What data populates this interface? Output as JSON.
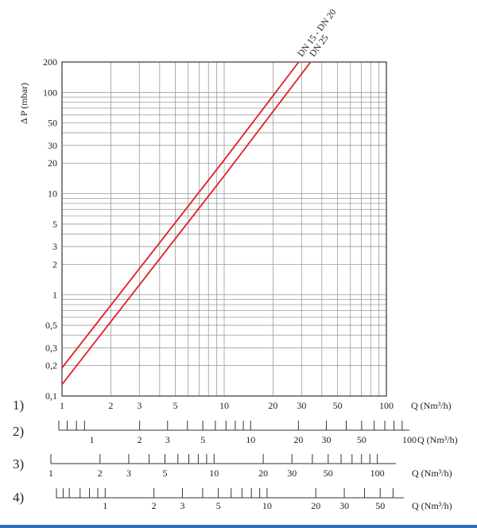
{
  "colors": {
    "series": "#e11d25",
    "grid": "#9a9a9a",
    "axis": "#333333",
    "text": "#222222",
    "bar": "#2f6fb0"
  },
  "chart_data": {
    "type": "line",
    "ylabel": "Δ P (mbar)",
    "xlabel": "Q (Nm³/h)",
    "xscale": "log",
    "yscale": "log",
    "xlim": [
      1,
      100
    ],
    "ylim": [
      0.1,
      200
    ],
    "grid": true,
    "y_ticks": [
      {
        "value": 0.1,
        "label": "0,1"
      },
      {
        "value": 0.2,
        "label": "0,2"
      },
      {
        "value": 0.3,
        "label": "0,3"
      },
      {
        "value": 0.5,
        "label": "0,5"
      },
      {
        "value": 1,
        "label": "1"
      },
      {
        "value": 2,
        "label": "2"
      },
      {
        "value": 3,
        "label": "3"
      },
      {
        "value": 5,
        "label": "5"
      },
      {
        "value": 10,
        "label": "10"
      },
      {
        "value": 20,
        "label": "20"
      },
      {
        "value": 30,
        "label": "30"
      },
      {
        "value": 50,
        "label": "50"
      },
      {
        "value": 100,
        "label": "100"
      },
      {
        "value": 200,
        "label": "200"
      }
    ],
    "x_ticks": [
      {
        "value": 1,
        "label": "1"
      },
      {
        "value": 2,
        "label": "2"
      },
      {
        "value": 3,
        "label": "3"
      },
      {
        "value": 5,
        "label": "5"
      },
      {
        "value": 10,
        "label": "10"
      },
      {
        "value": 20,
        "label": "20"
      },
      {
        "value": 30,
        "label": "30"
      },
      {
        "value": 50,
        "label": "50"
      },
      {
        "value": 100,
        "label": "100"
      }
    ],
    "series": [
      {
        "name": "DN 15 - DN 20",
        "points": [
          [
            1,
            0.19
          ],
          [
            10,
            21.5
          ],
          [
            28.8,
            200
          ]
        ]
      },
      {
        "name": "DN 25",
        "points": [
          [
            1,
            0.13
          ],
          [
            10,
            15
          ],
          [
            34.1,
            200
          ]
        ]
      }
    ],
    "scales": [
      {
        "label": "1)",
        "unit": "Q (Nm³/h)",
        "labels": [
          {
            "v": 1,
            "t": "1"
          },
          {
            "v": 2,
            "t": "2"
          },
          {
            "v": 3,
            "t": "3"
          },
          {
            "v": 5,
            "t": "5"
          },
          {
            "v": 10,
            "t": "10"
          },
          {
            "v": 20,
            "t": "20"
          },
          {
            "v": 30,
            "t": "30"
          },
          {
            "v": 50,
            "t": "50"
          },
          {
            "v": 100,
            "t": "100"
          }
        ],
        "ticks": [],
        "tmin": 1,
        "tmax": 100
      },
      {
        "label": "2)",
        "unit": "Q (Nm³/h)",
        "labels": [
          {
            "v": 1,
            "t": "1"
          },
          {
            "v": 2,
            "t": "2"
          },
          {
            "v": 3,
            "t": "3"
          },
          {
            "v": 5,
            "t": "5"
          },
          {
            "v": 10,
            "t": "10"
          },
          {
            "v": 20,
            "t": "20"
          },
          {
            "v": 30,
            "t": "30"
          },
          {
            "v": 50,
            "t": "50"
          },
          {
            "v": 100,
            "t": "100"
          }
        ],
        "ticks": [
          0.7,
          0.8,
          0.9,
          2,
          3,
          4,
          5,
          6,
          7,
          8,
          9,
          10,
          20,
          30,
          40,
          50,
          60,
          70,
          80,
          90
        ],
        "tmin": 0.62,
        "tmax": 100
      },
      {
        "label": "3)",
        "unit": "Q (Nm³/h)",
        "labels": [
          {
            "v": 1,
            "t": "1"
          },
          {
            "v": 2,
            "t": "2"
          },
          {
            "v": 3,
            "t": "3"
          },
          {
            "v": 5,
            "t": "5"
          },
          {
            "v": 10,
            "t": "10"
          },
          {
            "v": 20,
            "t": "20"
          },
          {
            "v": 30,
            "t": "30"
          },
          {
            "v": 50,
            "t": "50"
          },
          {
            "v": 100,
            "t": "100"
          }
        ],
        "ticks": [
          1,
          2,
          3,
          4,
          5,
          6,
          7,
          8,
          9,
          10,
          20,
          30,
          40,
          50,
          60,
          70,
          80,
          90,
          100
        ],
        "tmin": 1,
        "tmax": 130
      },
      {
        "label": "4)",
        "unit": "Q (Nm³/h)",
        "labels": [
          {
            "v": 1,
            "t": "1"
          },
          {
            "v": 2,
            "t": "2"
          },
          {
            "v": 3,
            "t": "3"
          },
          {
            "v": 5,
            "t": "5"
          },
          {
            "v": 10,
            "t": "10"
          },
          {
            "v": 20,
            "t": "20"
          },
          {
            "v": 30,
            "t": "30"
          },
          {
            "v": 50,
            "t": "50"
          }
        ],
        "ticks": [
          0.55,
          0.6,
          0.7,
          0.8,
          0.9,
          1,
          2,
          3,
          4,
          5,
          6,
          7,
          8,
          9,
          10,
          20,
          30,
          40,
          50,
          60
        ],
        "tmin": 0.5,
        "tmax": 70
      }
    ]
  }
}
